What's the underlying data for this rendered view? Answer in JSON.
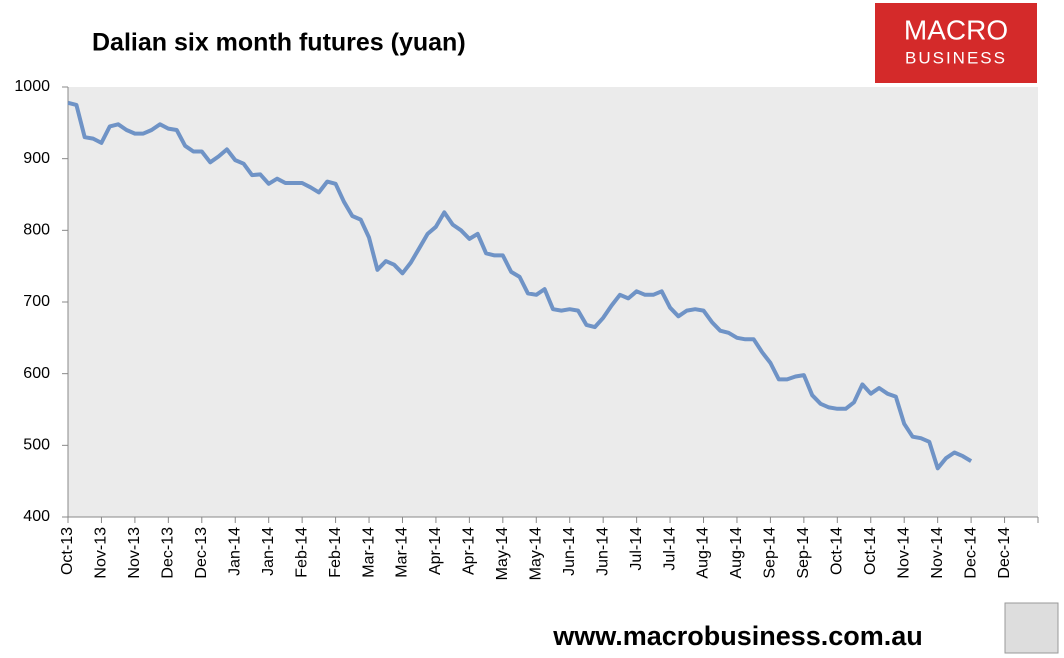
{
  "chart_data": {
    "type": "line",
    "title": "Dalian six month futures (yuan)",
    "x": [
      "Oct-13",
      null,
      null,
      null,
      "Nov-13",
      null,
      null,
      null,
      "Nov-13",
      null,
      null,
      null,
      "Dec-13",
      null,
      null,
      null,
      "Dec-13",
      null,
      null,
      null,
      "Jan-14",
      null,
      null,
      null,
      "Jan-14",
      null,
      null,
      null,
      "Feb-14",
      null,
      null,
      null,
      "Feb-14",
      null,
      null,
      null,
      "Mar-14",
      null,
      null,
      null,
      "Mar-14",
      null,
      null,
      null,
      "Apr-14",
      null,
      null,
      null,
      "Apr-14",
      null,
      null,
      null,
      "May-14",
      null,
      null,
      null,
      "May-14",
      null,
      null,
      null,
      "Jun-14",
      null,
      null,
      null,
      "Jun-14",
      null,
      null,
      null,
      "Jul-14",
      null,
      null,
      null,
      "Jul-14",
      null,
      null,
      null,
      "Aug-14",
      null,
      null,
      null,
      "Aug-14",
      null,
      null,
      null,
      "Sep-14",
      null,
      null,
      null,
      "Sep-14",
      null,
      null,
      null,
      "Oct-14",
      null,
      null,
      null,
      "Oct-14",
      null,
      null,
      null,
      "Nov-14",
      null,
      null,
      null,
      "Nov-14",
      null,
      null,
      null,
      "Dec-14",
      null,
      null,
      null,
      "Dec-14",
      null,
      null,
      null,
      null
    ],
    "series": [
      {
        "color": "#6f93c6",
        "values": [
          978,
          975,
          930,
          928,
          922,
          945,
          948,
          940,
          935,
          935,
          940,
          948,
          942,
          940,
          918,
          910,
          910,
          895,
          903,
          913,
          898,
          893,
          877,
          878,
          865,
          872,
          866,
          866,
          866,
          860,
          853,
          868,
          865,
          840,
          820,
          815,
          790,
          745,
          757,
          752,
          740,
          755,
          775,
          795,
          805,
          825,
          808,
          800,
          788,
          795,
          768,
          765,
          765,
          742,
          735,
          712,
          710,
          718,
          690,
          688,
          690,
          688,
          668,
          665,
          678,
          695,
          710,
          705,
          715,
          710,
          710,
          715,
          692,
          680,
          688,
          690,
          688,
          672,
          660,
          657,
          650,
          648,
          648,
          630,
          615,
          592,
          592,
          596,
          598,
          570,
          558,
          553,
          551,
          551,
          560,
          585,
          572,
          580,
          572,
          568,
          530,
          512,
          510,
          505,
          468,
          482,
          490,
          485,
          478,
          null,
          null,
          null,
          null,
          null,
          null,
          null,
          null
        ]
      }
    ],
    "ylim": [
      400,
      1000
    ],
    "yticks": [
      400,
      500,
      600,
      700,
      800,
      900,
      1000
    ],
    "grid": false,
    "plot_background": "#ebebeb"
  },
  "logo": {
    "line1": "MACRO",
    "line2": "BUSINESS"
  },
  "footer": "www.macrobusiness.com.au"
}
